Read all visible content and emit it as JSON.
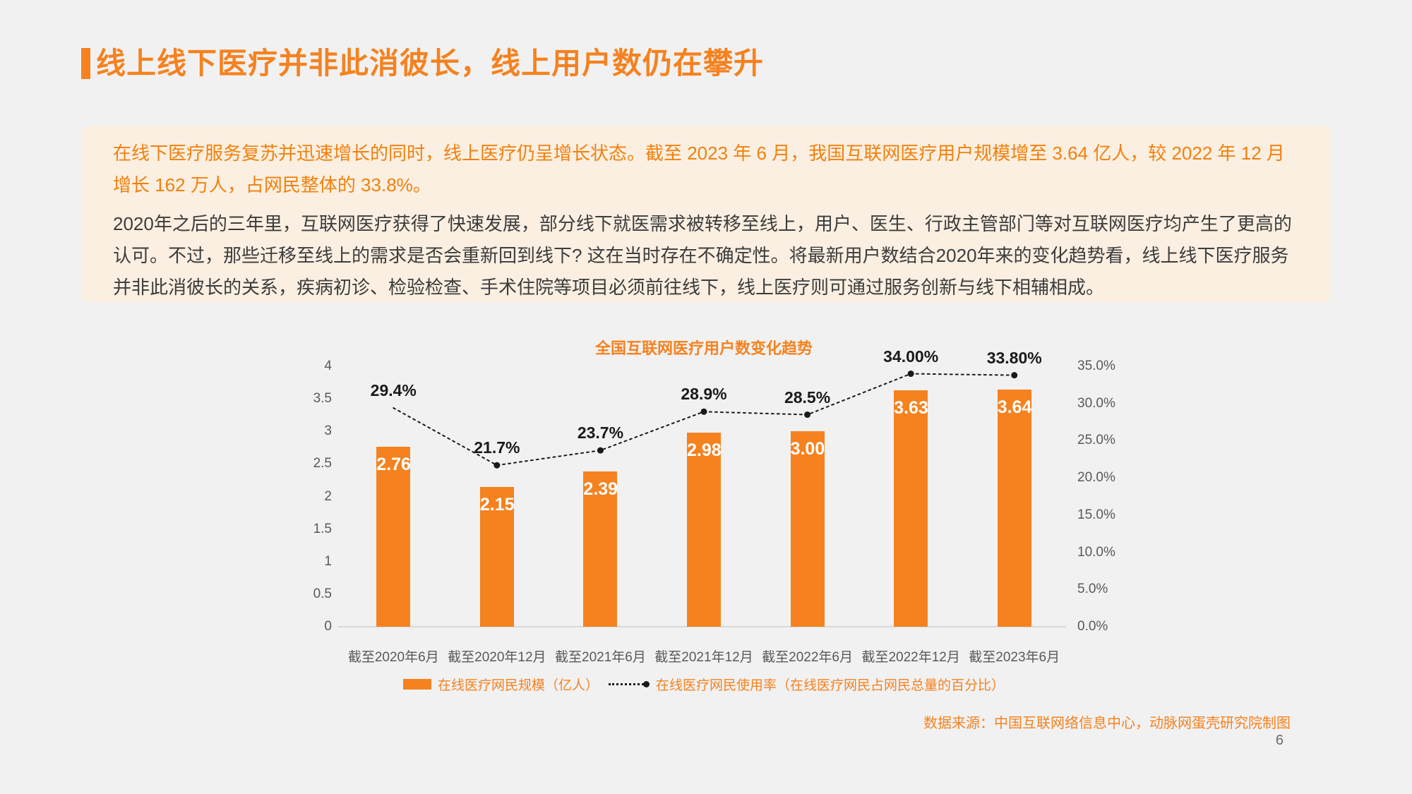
{
  "page": {
    "title": "线上线下医疗并非此消彼长，线上用户数仍在攀升",
    "page_number": "6",
    "source_note": "数据来源：中国互联网络信息中心，动脉网蛋壳研究院制图"
  },
  "note_box": {
    "paragraph_highlight": "在线下医疗服务复苏并迅速增长的同时，线上医疗仍呈增长状态。截至 2023 年 6 月，我国互联网医疗用户规模增至 3.64 亿人，较 2022 年 12 月增长 162 万人，占网民整体的 33.8%。",
    "paragraph_body": "2020年之后的三年里，互联网医疗获得了快速发展，部分线下就医需求被转移至线上，用户、医生、行政主管部门等对互联网医疗均产生了更高的认可。不过，那些迁移至线上的需求是否会重新回到线下? 这在当时存在不确定性。将最新用户数结合2020年来的变化趋势看，线上线下医疗服务并非此消彼长的关系，疾病初诊、检验检查、手术住院等项目必须前往线下，线上医疗则可通过服务创新与线下相辅相成。"
  },
  "chart_data": {
    "type": "bar",
    "subtype": "bar-line-combo",
    "title": "全国互联网医疗用户数变化趋势",
    "categories": [
      "截至2020年6月",
      "截至2020年12月",
      "截至2021年6月",
      "截至2021年12月",
      "截至2022年6月",
      "截至2022年12月",
      "截至2023年6月"
    ],
    "series": [
      {
        "name": "在线医疗网民规模（亿人）",
        "type": "bar",
        "axis": "left",
        "values": [
          2.76,
          2.15,
          2.39,
          2.98,
          3.0,
          3.63,
          3.64
        ],
        "labels": [
          "2.76",
          "2.15",
          "2.39",
          "2.98",
          "3.00",
          "3.63",
          "3.64"
        ],
        "color": "#F5821F"
      },
      {
        "name": "在线医疗网民使用率（在线医疗网民占网民总量的百分比）",
        "type": "line",
        "axis": "right",
        "values": [
          29.4,
          21.7,
          23.7,
          28.9,
          28.5,
          34.0,
          33.8
        ],
        "labels": [
          "29.4%",
          "21.7%",
          "23.7%",
          "28.9%",
          "28.5%",
          "34.00%",
          "33.80%"
        ],
        "color": "#1A1A1A",
        "line_style": "dotted",
        "markers": "all-except-first"
      }
    ],
    "left_axis": {
      "min": 0,
      "max": 4,
      "tick_labels": [
        "4",
        "3.5",
        "3",
        "2.5",
        "2",
        "1.5",
        "1",
        "0.5",
        "0"
      ],
      "tick_values": [
        4,
        3.5,
        3,
        2.5,
        2,
        1.5,
        1,
        0.5,
        0
      ]
    },
    "right_axis": {
      "min": 0,
      "max": 35,
      "tick_labels": [
        "35.0%",
        "30.0%",
        "25.0%",
        "20.0%",
        "15.0%",
        "10.0%",
        "5.0%",
        "0.0%"
      ],
      "tick_values": [
        35,
        30,
        25,
        20,
        15,
        10,
        5,
        0
      ]
    },
    "grid": false,
    "legend_position": "bottom"
  },
  "colors": {
    "accent_orange": "#F5821F",
    "highlight_text_orange": "#F2800D",
    "note_box_bg": "#FAEFE1",
    "page_bg": "#F1F1F2",
    "body_text": "#3C3C3C",
    "axis_text": "#595959",
    "line_series": "#1A1A1A",
    "bar_value_text": "#FFFFFF"
  }
}
